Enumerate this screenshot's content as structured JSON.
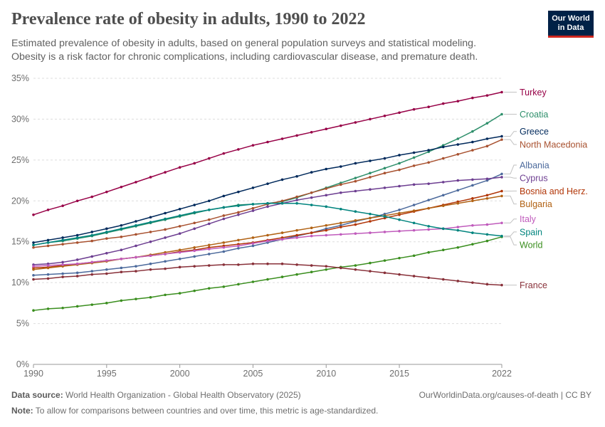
{
  "title": "Prevalence rate of obesity in adults, 1990 to 2022",
  "subtitle_line1": "Estimated prevalence of obesity in adults, based on general population surveys and statistical modeling.",
  "subtitle_line2": "Obesity is a risk factor for chronic complications, including cardiovascular disease, and premature death.",
  "logo_line1": "Our World",
  "logo_line2": "in Data",
  "footer": {
    "source_label": "Data source:",
    "source_text": "World Health Organization - Global Health Observatory (2025)",
    "url_text": "OurWorldinData.org/causes-of-death | CC BY",
    "note_label": "Note:",
    "note_text": "To allow for comparisons between countries and over time, this metric is age-standardized."
  },
  "chart_data": {
    "type": "line",
    "title": "Prevalence rate of obesity in adults, 1990 to 2022",
    "x": [
      1990,
      1991,
      1992,
      1993,
      1994,
      1995,
      1996,
      1997,
      1998,
      1999,
      2000,
      2001,
      2002,
      2003,
      2004,
      2005,
      2006,
      2007,
      2008,
      2009,
      2010,
      2011,
      2012,
      2013,
      2014,
      2015,
      2016,
      2017,
      2018,
      2019,
      2020,
      2021,
      2022
    ],
    "xticks": [
      1990,
      1995,
      2000,
      2005,
      2010,
      2015,
      2022
    ],
    "xtick_labels": [
      "1990",
      "1995",
      "2000",
      "2005",
      "2010",
      "2015",
      "2022"
    ],
    "yticks": [
      0,
      5,
      10,
      15,
      20,
      25,
      30,
      35
    ],
    "ytick_labels": [
      "0%",
      "5%",
      "10%",
      "15%",
      "20%",
      "25%",
      "30%",
      "35%"
    ],
    "ylim": [
      0,
      35
    ],
    "xlim": [
      1990,
      2022
    ],
    "grid": "horizontal dashed",
    "legend_placement": "right, labels at line ends",
    "series": [
      {
        "name": "Turkey",
        "color": "#970046",
        "values": [
          18.3,
          18.9,
          19.4,
          20.0,
          20.5,
          21.1,
          21.7,
          22.3,
          22.9,
          23.5,
          24.1,
          24.6,
          25.2,
          25.8,
          26.3,
          26.8,
          27.2,
          27.6,
          28.0,
          28.4,
          28.8,
          29.2,
          29.6,
          30.0,
          30.4,
          30.8,
          31.2,
          31.5,
          31.9,
          32.2,
          32.6,
          32.9,
          33.3
        ]
      },
      {
        "name": "Croatia",
        "color": "#2e8f6b",
        "values": [
          14.6,
          14.9,
          15.1,
          15.4,
          15.7,
          16.1,
          16.5,
          16.9,
          17.3,
          17.7,
          18.1,
          18.5,
          18.9,
          19.2,
          19.5,
          19.6,
          19.7,
          19.9,
          20.4,
          21.0,
          21.6,
          22.2,
          22.8,
          23.4,
          24.0,
          24.6,
          25.3,
          26.0,
          26.8,
          27.6,
          28.5,
          29.5,
          30.6
        ]
      },
      {
        "name": "Greece",
        "color": "#00295b",
        "values": [
          14.9,
          15.2,
          15.5,
          15.8,
          16.2,
          16.6,
          17.0,
          17.5,
          18.0,
          18.5,
          19.0,
          19.5,
          20.0,
          20.6,
          21.1,
          21.6,
          22.1,
          22.6,
          23.0,
          23.5,
          23.9,
          24.2,
          24.6,
          24.9,
          25.2,
          25.6,
          25.9,
          26.2,
          26.6,
          26.9,
          27.2,
          27.6,
          27.9
        ]
      },
      {
        "name": "North Macedonia",
        "color": "#a8512f",
        "values": [
          14.3,
          14.5,
          14.7,
          14.9,
          15.1,
          15.4,
          15.6,
          15.9,
          16.2,
          16.5,
          16.9,
          17.3,
          17.7,
          18.2,
          18.6,
          19.1,
          19.6,
          20.0,
          20.5,
          21.0,
          21.5,
          22.0,
          22.4,
          22.9,
          23.4,
          23.8,
          24.3,
          24.7,
          25.2,
          25.7,
          26.2,
          26.7,
          27.5
        ]
      },
      {
        "name": "Albania",
        "color": "#4c6a9c",
        "values": [
          10.9,
          11.0,
          11.1,
          11.2,
          11.4,
          11.6,
          11.8,
          12.0,
          12.3,
          12.6,
          12.9,
          13.2,
          13.5,
          13.8,
          14.2,
          14.5,
          14.9,
          15.3,
          15.7,
          16.1,
          16.6,
          17.0,
          17.5,
          17.9,
          18.4,
          18.9,
          19.5,
          20.1,
          20.7,
          21.3,
          21.9,
          22.5,
          23.3
        ]
      },
      {
        "name": "Cyprus",
        "color": "#6d3e91",
        "values": [
          12.2,
          12.3,
          12.5,
          12.8,
          13.2,
          13.6,
          14.0,
          14.5,
          15.0,
          15.5,
          16.0,
          16.6,
          17.2,
          17.8,
          18.3,
          18.8,
          19.3,
          19.7,
          20.1,
          20.4,
          20.7,
          21.0,
          21.2,
          21.4,
          21.6,
          21.8,
          22.0,
          22.1,
          22.3,
          22.5,
          22.6,
          22.7,
          22.9
        ]
      },
      {
        "name": "Bosnia and Herz.",
        "color": "#b13507",
        "values": [
          11.8,
          11.9,
          12.1,
          12.3,
          12.5,
          12.7,
          12.9,
          13.1,
          13.3,
          13.5,
          13.8,
          14.0,
          14.3,
          14.5,
          14.7,
          14.9,
          15.2,
          15.5,
          15.8,
          16.1,
          16.4,
          16.8,
          17.1,
          17.5,
          17.9,
          18.3,
          18.7,
          19.1,
          19.5,
          19.9,
          20.3,
          20.7,
          21.2
        ]
      },
      {
        "name": "Bulgaria",
        "color": "#b16214",
        "values": [
          11.6,
          11.8,
          12.0,
          12.2,
          12.4,
          12.6,
          12.9,
          13.1,
          13.4,
          13.7,
          14.0,
          14.3,
          14.6,
          14.9,
          15.2,
          15.5,
          15.8,
          16.1,
          16.4,
          16.7,
          17.0,
          17.3,
          17.6,
          17.9,
          18.2,
          18.5,
          18.8,
          19.1,
          19.4,
          19.7,
          20.0,
          20.3,
          20.6
        ]
      },
      {
        "name": "Italy",
        "color": "#c05bbc",
        "values": [
          12.0,
          12.1,
          12.2,
          12.3,
          12.5,
          12.7,
          12.9,
          13.1,
          13.3,
          13.5,
          13.7,
          13.9,
          14.1,
          14.3,
          14.5,
          14.8,
          15.1,
          15.3,
          15.5,
          15.7,
          15.8,
          15.9,
          16.0,
          16.1,
          16.2,
          16.3,
          16.4,
          16.5,
          16.6,
          16.8,
          17.0,
          17.1,
          17.3
        ]
      },
      {
        "name": "World",
        "color": "#3a8e1e",
        "values": [
          6.6,
          6.8,
          6.9,
          7.1,
          7.3,
          7.5,
          7.8,
          8.0,
          8.2,
          8.5,
          8.7,
          9.0,
          9.3,
          9.5,
          9.8,
          10.1,
          10.4,
          10.7,
          11.0,
          11.3,
          11.6,
          11.9,
          12.1,
          12.4,
          12.7,
          13.0,
          13.3,
          13.7,
          14.0,
          14.3,
          14.7,
          15.1,
          15.6
        ]
      },
      {
        "name": "Spain",
        "color": "#00847e",
        "values": [
          14.6,
          14.9,
          15.2,
          15.5,
          15.8,
          16.2,
          16.6,
          17.0,
          17.4,
          17.8,
          18.2,
          18.6,
          18.9,
          19.2,
          19.4,
          19.6,
          19.7,
          19.7,
          19.7,
          19.5,
          19.3,
          19.0,
          18.7,
          18.4,
          18.1,
          17.7,
          17.3,
          16.9,
          16.6,
          16.4,
          16.1,
          15.9,
          15.7
        ]
      },
      {
        "name": "France",
        "color": "#883039",
        "values": [
          10.4,
          10.5,
          10.7,
          10.8,
          11.0,
          11.1,
          11.3,
          11.4,
          11.6,
          11.7,
          11.9,
          12.0,
          12.1,
          12.2,
          12.2,
          12.3,
          12.3,
          12.3,
          12.2,
          12.1,
          12.0,
          11.8,
          11.6,
          11.4,
          11.2,
          11.0,
          10.8,
          10.6,
          10.4,
          10.2,
          10.0,
          9.8,
          9.7
        ]
      }
    ]
  }
}
